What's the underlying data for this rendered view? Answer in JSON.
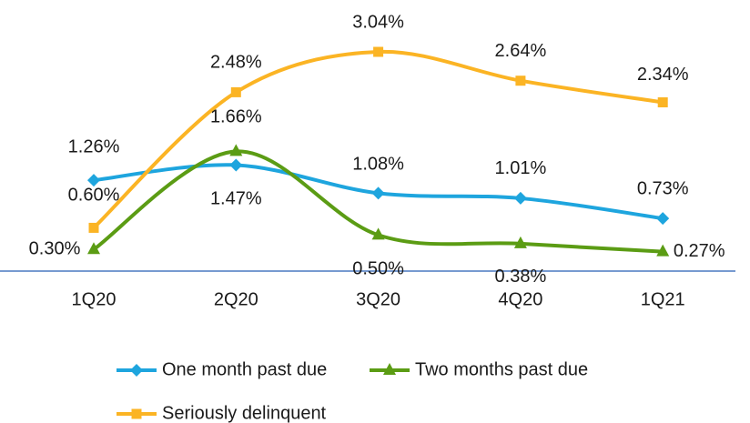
{
  "chart_data": {
    "type": "line",
    "categories": [
      "1Q20",
      "2Q20",
      "3Q20",
      "4Q20",
      "1Q21"
    ],
    "series": [
      {
        "name": "One month past due",
        "color": "#1ea5de",
        "marker": "diamond",
        "values": [
          1.26,
          1.47,
          1.08,
          1.01,
          0.73
        ],
        "value_labels": [
          "1.26%",
          "1.47%",
          "1.08%",
          "1.01%",
          "0.73%"
        ]
      },
      {
        "name": "Two months past due",
        "color": "#5b9c14",
        "marker": "triangle",
        "values": [
          0.3,
          1.66,
          0.5,
          0.38,
          0.27
        ],
        "value_labels": [
          "0.30%",
          "1.66%",
          "0.50%",
          "0.38%",
          "0.27%"
        ]
      },
      {
        "name": "Seriously delinquent",
        "color": "#fbb424",
        "marker": "square",
        "values": [
          0.6,
          2.48,
          3.04,
          2.64,
          2.34
        ],
        "value_labels": [
          "0.60%",
          "2.48%",
          "3.04%",
          "2.64%",
          "2.34%"
        ]
      }
    ],
    "smooth": true
  }
}
